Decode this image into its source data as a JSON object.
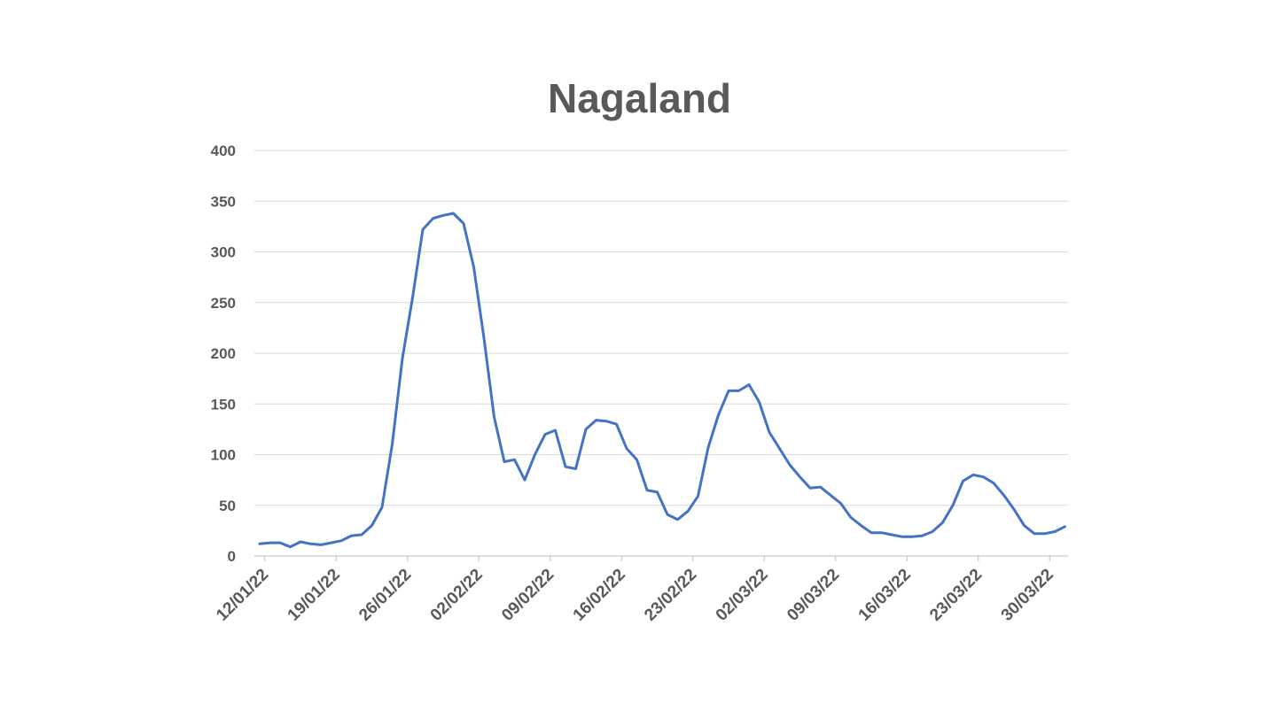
{
  "chart_data": {
    "type": "line",
    "title": "Nagaland",
    "xlabel": "",
    "ylabel": "",
    "ylim": [
      0,
      400
    ],
    "yticks": [
      0,
      50,
      100,
      150,
      200,
      250,
      300,
      350,
      400
    ],
    "grid": true,
    "legend": "none",
    "line_color": "#4472c4",
    "grid_color": "#d9d9d9",
    "x_start": "11/01/22",
    "x_tick_labels": [
      "12/01/22",
      "19/01/22",
      "26/01/22",
      "02/02/22",
      "09/02/22",
      "16/02/22",
      "23/02/22",
      "02/03/22",
      "09/03/22",
      "16/03/22",
      "23/03/22",
      "30/03/22"
    ],
    "series": [
      {
        "values": [
          12,
          13,
          13,
          9,
          14,
          12,
          11,
          13,
          15,
          20,
          21,
          30,
          48,
          110,
          195,
          255,
          322,
          333,
          336,
          338,
          328,
          285,
          215,
          137,
          93,
          95,
          75,
          100,
          120,
          124,
          88,
          86,
          125,
          134,
          133,
          130,
          106,
          95,
          65,
          63,
          41,
          36,
          44,
          59,
          107,
          139,
          163,
          163,
          169,
          152,
          122,
          106,
          90,
          78,
          67,
          68,
          60,
          52,
          38,
          30,
          23,
          23,
          21,
          19,
          19,
          20,
          24,
          33,
          50,
          74,
          80,
          78,
          72,
          60,
          46,
          30,
          22,
          22,
          24,
          29
        ]
      }
    ]
  }
}
